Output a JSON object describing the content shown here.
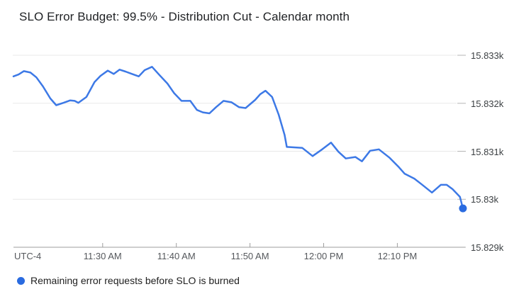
{
  "title": "SLO Error Budget: 99.5% - Distribution Cut - Calendar month",
  "colors": {
    "line": "#3d79e6",
    "end_dot": "#2a6be0",
    "grid": "#e9e9e9",
    "grid_stub": "#b5b5b5",
    "axis": "#9e9e9e",
    "tick_text": "#55585c",
    "y_tick_text": "#3c4043"
  },
  "x_axis": {
    "utc_label": "UTC-4",
    "ticks": [
      {
        "t": 30,
        "label": "11:30 AM"
      },
      {
        "t": 40,
        "label": "11:40 AM"
      },
      {
        "t": 50,
        "label": "11:50 AM"
      },
      {
        "t": 60,
        "label": "12:00 PM"
      },
      {
        "t": 70,
        "label": "12:10 PM"
      }
    ]
  },
  "y_axis": {
    "ticks": [
      {
        "v": 15829,
        "label": "15.829k"
      },
      {
        "v": 15830,
        "label": "15.83k"
      },
      {
        "v": 15831,
        "label": "15.831k"
      },
      {
        "v": 15832,
        "label": "15.832k"
      },
      {
        "v": 15833,
        "label": "15.833k"
      }
    ]
  },
  "legend": {
    "label": "Remaining error requests before SLO is burned"
  },
  "chart_data": {
    "type": "line",
    "title": "SLO Error Budget: 99.5% - Distribution Cut - Calendar month",
    "x_unit": "minutes after 11:00 AM (UTC-4)",
    "x_range": [
      17.8,
      79.2
    ],
    "y_range": [
      15829,
      15833
    ],
    "grid": true,
    "legend_position": "bottom-left",
    "end_point_marker": true,
    "series": [
      {
        "name": "Remaining error requests before SLO is burned",
        "points": [
          [
            17.9,
            15832.56
          ],
          [
            18.6,
            15832.6
          ],
          [
            19.3,
            15832.67
          ],
          [
            20.2,
            15832.64
          ],
          [
            21.0,
            15832.54
          ],
          [
            21.9,
            15832.35
          ],
          [
            22.9,
            15832.1
          ],
          [
            23.7,
            15831.96
          ],
          [
            24.7,
            15832.01
          ],
          [
            25.6,
            15832.06
          ],
          [
            26.2,
            15832.05
          ],
          [
            26.7,
            15832.01
          ],
          [
            27.8,
            15832.13
          ],
          [
            28.9,
            15832.44
          ],
          [
            29.7,
            15832.57
          ],
          [
            30.7,
            15832.68
          ],
          [
            31.5,
            15832.61
          ],
          [
            32.3,
            15832.7
          ],
          [
            33.1,
            15832.66
          ],
          [
            34.0,
            15832.61
          ],
          [
            34.9,
            15832.56
          ],
          [
            35.7,
            15832.69
          ],
          [
            36.7,
            15832.76
          ],
          [
            37.7,
            15832.59
          ],
          [
            38.8,
            15832.41
          ],
          [
            39.7,
            15832.21
          ],
          [
            40.7,
            15832.05
          ],
          [
            41.9,
            15832.05
          ],
          [
            42.8,
            15831.86
          ],
          [
            43.6,
            15831.81
          ],
          [
            44.5,
            15831.79
          ],
          [
            45.4,
            15831.92
          ],
          [
            46.4,
            15832.05
          ],
          [
            47.5,
            15832.02
          ],
          [
            48.5,
            15831.92
          ],
          [
            49.4,
            15831.9
          ],
          [
            50.7,
            15832.07
          ],
          [
            51.4,
            15832.19
          ],
          [
            52.1,
            15832.26
          ],
          [
            53.0,
            15832.13
          ],
          [
            53.9,
            15831.76
          ],
          [
            54.7,
            15831.34
          ],
          [
            55.0,
            15831.09
          ],
          [
            57.1,
            15831.07
          ],
          [
            58.5,
            15830.9
          ],
          [
            59.8,
            15831.04
          ],
          [
            61.0,
            15831.18
          ],
          [
            62.0,
            15830.99
          ],
          [
            63.0,
            15830.85
          ],
          [
            64.3,
            15830.88
          ],
          [
            65.2,
            15830.79
          ],
          [
            66.3,
            15831.01
          ],
          [
            67.5,
            15831.04
          ],
          [
            68.9,
            15830.87
          ],
          [
            70.2,
            15830.67
          ],
          [
            71.0,
            15830.53
          ],
          [
            72.3,
            15830.43
          ],
          [
            73.3,
            15830.31
          ],
          [
            74.7,
            15830.14
          ],
          [
            75.9,
            15830.3
          ],
          [
            76.7,
            15830.3
          ],
          [
            77.5,
            15830.21
          ],
          [
            78.5,
            15830.05
          ],
          [
            78.9,
            15829.81
          ]
        ]
      }
    ]
  }
}
